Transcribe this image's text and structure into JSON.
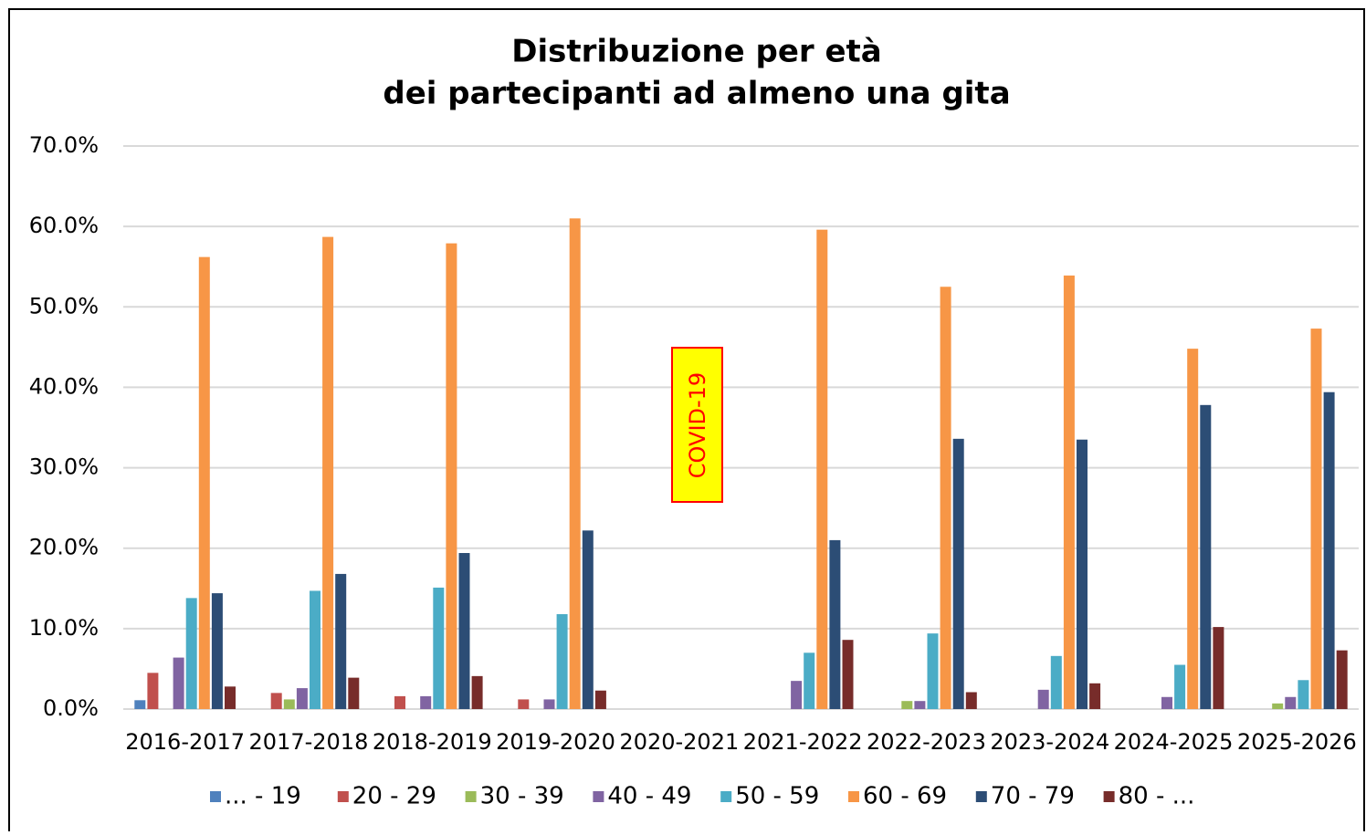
{
  "chart_data": {
    "type": "bar",
    "title": "Distribuzione per età",
    "subtitle": "dei partecipanti ad almeno una gita",
    "annotation": "COVID-19",
    "categories": [
      "2016-2017",
      "2017-2018",
      "2018-2019",
      "2019-2020",
      "2020-2021",
      "2021-2022",
      "2022-2023",
      "2023-2024",
      "2024-2025",
      "2025-2026"
    ],
    "series": [
      {
        "name": "... - 19",
        "color": "#4f81bd",
        "values": [
          1.1,
          0,
          0,
          0,
          null,
          0,
          0,
          0,
          0,
          0
        ]
      },
      {
        "name": "20 - 29",
        "color": "#c0504d",
        "values": [
          4.5,
          2.0,
          1.6,
          1.2,
          null,
          0,
          0,
          0,
          0,
          0
        ]
      },
      {
        "name": "30 - 39",
        "color": "#9bbb59",
        "values": [
          0,
          1.2,
          0,
          0,
          null,
          0,
          1.0,
          0,
          0,
          0.7
        ]
      },
      {
        "name": "40 - 49",
        "color": "#8064a2",
        "values": [
          6.4,
          2.6,
          1.6,
          1.2,
          null,
          3.5,
          1.0,
          2.4,
          1.5,
          1.5
        ]
      },
      {
        "name": "50 - 59",
        "color": "#4bacc6",
        "values": [
          13.8,
          14.7,
          15.1,
          11.8,
          null,
          7.0,
          9.4,
          6.6,
          5.5,
          3.6
        ]
      },
      {
        "name": "60 - 69",
        "color": "#f79646",
        "values": [
          56.2,
          58.7,
          57.9,
          61.0,
          null,
          59.6,
          52.5,
          53.9,
          44.8,
          47.3
        ]
      },
      {
        "name": "70 - 79",
        "color": "#2c4d75",
        "values": [
          14.4,
          16.8,
          19.4,
          22.2,
          null,
          21.0,
          33.6,
          33.5,
          37.8,
          39.4
        ]
      },
      {
        "name": "80 - ...",
        "color": "#772c2a",
        "values": [
          2.8,
          3.9,
          4.1,
          2.3,
          null,
          8.6,
          2.1,
          3.2,
          10.2,
          7.3
        ]
      }
    ],
    "ylim": [
      0,
      70
    ],
    "yticks": [
      {
        "value": 0,
        "label": "0.0%"
      },
      {
        "value": 10,
        "label": "10.0%"
      },
      {
        "value": 20,
        "label": "20.0%"
      },
      {
        "value": 30,
        "label": "30.0%"
      },
      {
        "value": 40,
        "label": "40.0%"
      },
      {
        "value": 50,
        "label": "50.0%"
      },
      {
        "value": 60,
        "label": "60.0%"
      },
      {
        "value": 70,
        "label": "70.0%"
      }
    ],
    "grid": true,
    "legend": "bottom"
  }
}
